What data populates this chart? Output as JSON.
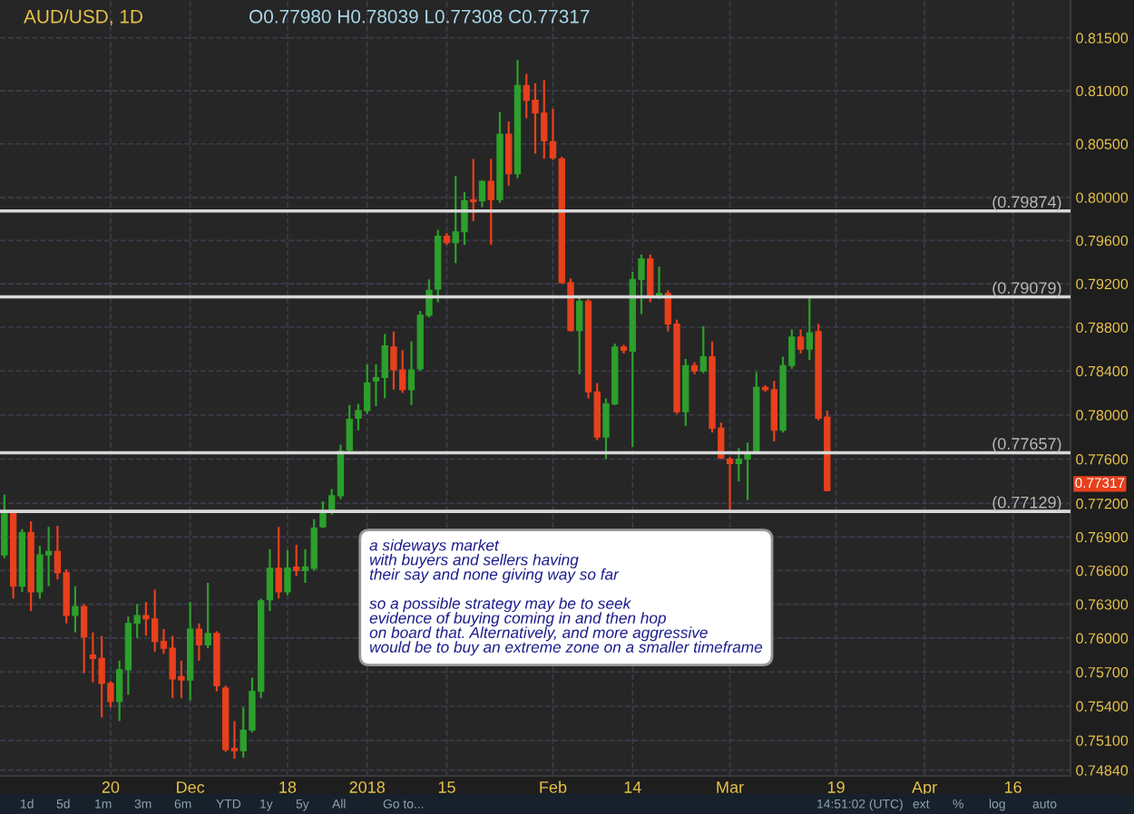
{
  "chart_data": {
    "type": "candlestick",
    "title": "AUD/USD, 1D",
    "subtitle": "O0.77980 H0.78039 L0.77308 C0.77317",
    "categories": [
      null,
      null,
      null,
      null,
      null,
      null,
      null,
      null,
      null,
      null,
      null,
      null,
      "20",
      null,
      null,
      null,
      null,
      null,
      null,
      null,
      null,
      "Dec",
      null,
      null,
      null,
      null,
      null,
      null,
      null,
      null,
      null,
      null,
      "18",
      null,
      null,
      null,
      null,
      null,
      null,
      null,
      null,
      "2018",
      null,
      null,
      null,
      null,
      null,
      null,
      null,
      null,
      "15",
      null,
      null,
      null,
      null,
      null,
      null,
      null,
      null,
      null,
      null,
      null,
      "Feb",
      null,
      null,
      null,
      null,
      null,
      null,
      null,
      null,
      "14",
      null,
      null,
      null,
      null,
      null,
      null,
      null,
      null,
      null,
      null,
      "Mar",
      null,
      null,
      null,
      null,
      null,
      null,
      null,
      null,
      null,
      null,
      null,
      "19",
      null,
      null,
      null,
      null,
      null,
      null,
      null,
      null,
      null,
      "Apr",
      null,
      null,
      null,
      null,
      null,
      null,
      null,
      null,
      null,
      "16",
      null,
      null,
      null,
      null,
      null,
      null
    ],
    "ohlc": [
      [
        0.7674,
        0.7728,
        0.7671,
        0.7711
      ],
      [
        0.7711,
        0.7713,
        0.7635,
        0.7646
      ],
      [
        0.7646,
        0.7697,
        0.7641,
        0.7694
      ],
      [
        0.7694,
        0.7704,
        0.7624,
        0.7641
      ],
      [
        0.7641,
        0.7682,
        0.7635,
        0.7674
      ],
      [
        0.7674,
        0.7699,
        0.7646,
        0.7677
      ],
      [
        0.7677,
        0.77,
        0.7652,
        0.7658
      ],
      [
        0.7658,
        0.7661,
        0.7613,
        0.762
      ],
      [
        0.762,
        0.7646,
        0.7605,
        0.7628
      ],
      [
        0.7628,
        0.763,
        0.7569,
        0.7601
      ],
      [
        0.7585,
        0.7605,
        0.7561,
        0.7582
      ],
      [
        0.7582,
        0.7602,
        0.753,
        0.756
      ],
      [
        0.756,
        0.7562,
        0.7539,
        0.7544
      ],
      [
        0.7544,
        0.758,
        0.7527,
        0.7572
      ],
      [
        0.7572,
        0.7619,
        0.755,
        0.7613
      ],
      [
        0.7613,
        0.763,
        0.76,
        0.762
      ],
      [
        0.762,
        0.7632,
        0.7602,
        0.7617
      ],
      [
        0.7617,
        0.7643,
        0.7588,
        0.7597
      ],
      [
        0.7597,
        0.7608,
        0.7586,
        0.7591
      ],
      [
        0.7591,
        0.7602,
        0.7547,
        0.7564
      ],
      [
        0.7566,
        0.758,
        0.7547,
        0.7563
      ],
      [
        0.7563,
        0.7632,
        0.7545,
        0.7608
      ],
      [
        0.7608,
        0.7613,
        0.758,
        0.7594
      ],
      [
        0.7594,
        0.7649,
        0.7591,
        0.7604
      ],
      [
        0.7604,
        0.7606,
        0.7553,
        0.7558
      ],
      [
        0.7556,
        0.7558,
        0.75,
        0.7502
      ],
      [
        0.7503,
        0.7527,
        0.7494,
        0.7501
      ],
      [
        0.7501,
        0.7539,
        0.7495,
        0.7519
      ],
      [
        0.7519,
        0.7565,
        0.7517,
        0.7553
      ],
      [
        0.7553,
        0.7635,
        0.7547,
        0.7633
      ],
      [
        0.7634,
        0.7679,
        0.7624,
        0.7662
      ],
      [
        0.7662,
        0.7699,
        0.7635,
        0.7641
      ],
      [
        0.7641,
        0.7678,
        0.7638,
        0.7662
      ],
      [
        0.7663,
        0.7683,
        0.7655,
        0.766
      ],
      [
        0.766,
        0.7679,
        0.7649,
        0.7663
      ],
      [
        0.7662,
        0.7706,
        0.766,
        0.7698
      ],
      [
        0.7699,
        0.7722,
        0.7698,
        0.7713
      ],
      [
        0.7714,
        0.7733,
        0.771,
        0.7727
      ],
      [
        0.7727,
        0.7773,
        0.7724,
        0.7767
      ],
      [
        0.7768,
        0.7809,
        0.7765,
        0.7796
      ],
      [
        0.7797,
        0.781,
        0.7786,
        0.7804
      ],
      [
        0.7804,
        0.7846,
        0.7801,
        0.7829
      ],
      [
        0.7831,
        0.7846,
        0.7808,
        0.7834
      ],
      [
        0.7834,
        0.7874,
        0.7815,
        0.7863
      ],
      [
        0.7862,
        0.7876,
        0.7823,
        0.7841
      ],
      [
        0.7841,
        0.7859,
        0.782,
        0.7823
      ],
      [
        0.7823,
        0.7867,
        0.7809,
        0.7841
      ],
      [
        0.7842,
        0.7895,
        0.784,
        0.7891
      ],
      [
        0.7891,
        0.7924,
        0.7889,
        0.7914
      ],
      [
        0.7915,
        0.797,
        0.7903,
        0.7964
      ],
      [
        0.7964,
        0.7967,
        0.7956,
        0.7958
      ],
      [
        0.7958,
        0.802,
        0.7939,
        0.7968
      ],
      [
        0.7968,
        0.8005,
        0.7956,
        0.7997
      ],
      [
        0.7998,
        0.8036,
        0.7978,
        0.7996
      ],
      [
        0.7997,
        0.8016,
        0.7991,
        0.8015
      ],
      [
        0.8015,
        0.8036,
        0.7956,
        0.7998
      ],
      [
        0.7998,
        0.808,
        0.7995,
        0.8059
      ],
      [
        0.8059,
        0.8071,
        0.8011,
        0.8022
      ],
      [
        0.8022,
        0.8129,
        0.8018,
        0.8105
      ],
      [
        0.8105,
        0.8116,
        0.8074,
        0.8091
      ],
      [
        0.8091,
        0.8107,
        0.8041,
        0.8079
      ],
      [
        0.8079,
        0.811,
        0.8036,
        0.8053
      ],
      [
        0.8052,
        0.8083,
        0.8035,
        0.8037
      ],
      [
        0.8036,
        0.8038,
        0.792,
        0.7921
      ],
      [
        0.7921,
        0.7925,
        0.7876,
        0.7877
      ],
      [
        0.7877,
        0.7909,
        0.7837,
        0.7904
      ],
      [
        0.7904,
        0.7906,
        0.7815,
        0.7821
      ],
      [
        0.7821,
        0.7829,
        0.7777,
        0.778
      ],
      [
        0.778,
        0.7815,
        0.776,
        0.781
      ],
      [
        0.781,
        0.7865,
        0.7809,
        0.7862
      ],
      [
        0.7862,
        0.7864,
        0.7856,
        0.7859
      ],
      [
        0.7858,
        0.7931,
        0.7771,
        0.7924
      ],
      [
        0.7924,
        0.7947,
        0.7892,
        0.7943
      ],
      [
        0.7943,
        0.7947,
        0.7903,
        0.7909
      ],
      [
        0.7909,
        0.7936,
        0.7906,
        0.7911
      ],
      [
        0.7911,
        0.7914,
        0.7876,
        0.7883
      ],
      [
        0.7883,
        0.7887,
        0.7801,
        0.7803
      ],
      [
        0.7803,
        0.7851,
        0.779,
        0.7845
      ],
      [
        0.7845,
        0.7848,
        0.7837,
        0.784
      ],
      [
        0.784,
        0.7881,
        0.7838,
        0.7853
      ],
      [
        0.7853,
        0.7867,
        0.7784,
        0.7788
      ],
      [
        0.7788,
        0.7793,
        0.776,
        0.7761
      ],
      [
        0.776,
        0.7762,
        0.77129,
        0.7756
      ],
      [
        0.7756,
        0.777,
        0.774,
        0.776
      ],
      [
        0.776,
        0.7775,
        0.7723,
        0.7765
      ],
      [
        0.7765,
        0.7839,
        0.7765,
        0.7825
      ],
      [
        0.7825,
        0.7827,
        0.7821,
        0.7823
      ],
      [
        0.7823,
        0.7831,
        0.7776,
        0.7786
      ],
      [
        0.7786,
        0.7853,
        0.7784,
        0.7845
      ],
      [
        0.7845,
        0.7878,
        0.7842,
        0.7871
      ],
      [
        0.7871,
        0.7878,
        0.7856,
        0.786
      ],
      [
        0.786,
        0.79079,
        0.785,
        0.7875
      ],
      [
        0.7876,
        0.7883,
        0.7795,
        0.7797
      ],
      [
        0.7798,
        0.78039,
        0.77308,
        0.77317
      ],
      null,
      null,
      null,
      null,
      null,
      null,
      null,
      null,
      null,
      null,
      null,
      null,
      null,
      null,
      null,
      null,
      null,
      null,
      null,
      null,
      null,
      null,
      null,
      null,
      null,
      null,
      null
    ],
    "colors": [
      "#2ca02c",
      "#e8401c",
      "#2ca02c",
      "#e8401c",
      "#2ca02c",
      "#2ca02c",
      "#e8401c",
      "#e8401c",
      "#2ca02c",
      "#e8401c",
      "#e8401c",
      "#e8401c",
      "#e8401c",
      "#2ca02c",
      "#2ca02c",
      "#2ca02c",
      "#e8401c",
      "#e8401c",
      "#e8401c",
      "#e8401c",
      "#e8401c",
      "#2ca02c",
      "#e8401c",
      "#2ca02c",
      "#e8401c",
      "#e8401c",
      "#e8401c",
      "#2ca02c",
      "#2ca02c",
      "#2ca02c",
      "#2ca02c",
      "#e8401c",
      "#2ca02c",
      "#e8401c",
      "#2ca02c",
      "#2ca02c",
      "#2ca02c",
      "#2ca02c",
      "#2ca02c",
      "#2ca02c",
      "#2ca02c",
      "#2ca02c",
      "#2ca02c",
      "#2ca02c",
      "#e8401c",
      "#e8401c",
      "#2ca02c",
      "#2ca02c",
      "#2ca02c",
      "#2ca02c",
      "#e8401c",
      "#2ca02c",
      "#2ca02c",
      "#e8401c",
      "#2ca02c",
      "#e8401c",
      "#2ca02c",
      "#e8401c",
      "#2ca02c",
      "#e8401c",
      "#e8401c",
      "#e8401c",
      "#e8401c",
      "#e8401c",
      "#e8401c",
      "#2ca02c",
      "#e8401c",
      "#e8401c",
      "#2ca02c",
      "#2ca02c",
      "#e8401c",
      "#2ca02c",
      "#2ca02c",
      "#e8401c",
      "#2ca02c",
      "#e8401c",
      "#e8401c",
      "#2ca02c",
      "#e8401c",
      "#2ca02c",
      "#e8401c",
      "#e8401c",
      "#e8401c",
      "#2ca02c",
      "#2ca02c",
      "#2ca02c",
      "#e8401c",
      "#e8401c",
      "#2ca02c",
      "#2ca02c",
      "#e8401c",
      "#2ca02c",
      "#e8401c",
      "#e8401c",
      null,
      null,
      null,
      null,
      null,
      null,
      null,
      null,
      null,
      null,
      null,
      null,
      null,
      null,
      null,
      null,
      null,
      null,
      null,
      null,
      null,
      null,
      null,
      null,
      null,
      null,
      null
    ],
    "log": true,
    "grid": true,
    "ylim": [
      0.7479,
      0.8186
    ],
    "yticks": [
      {
        "value": 0.815,
        "label": "0.81500"
      },
      {
        "value": 0.81,
        "label": "0.81000"
      },
      {
        "value": 0.805,
        "label": "0.80500"
      },
      {
        "value": 0.8,
        "label": "0.80000"
      },
      {
        "value": 0.796,
        "label": "0.79600"
      },
      {
        "value": 0.792,
        "label": "0.79200"
      },
      {
        "value": 0.788,
        "label": "0.78800"
      },
      {
        "value": 0.784,
        "label": "0.78400"
      },
      {
        "value": 0.78,
        "label": "0.78000"
      },
      {
        "value": 0.776,
        "label": "0.77600"
      },
      {
        "value": 0.772,
        "label": "0.77200"
      },
      {
        "value": 0.769,
        "label": "0.76900"
      },
      {
        "value": 0.766,
        "label": "0.76600"
      },
      {
        "value": 0.763,
        "label": "0.76300"
      },
      {
        "value": 0.76,
        "label": "0.76000"
      },
      {
        "value": 0.757,
        "label": "0.75700"
      },
      {
        "value": 0.754,
        "label": "0.75400"
      },
      {
        "value": 0.751,
        "label": "0.75100"
      },
      {
        "value": 0.7484,
        "label": "0.74840"
      }
    ],
    "ref_lines": [
      {
        "axis": "y",
        "value": 0.79874,
        "label": "(0.79874)",
        "color": "#d8d8d8"
      },
      {
        "axis": "y",
        "value": 0.79079,
        "label": "(0.79079)",
        "color": "#d8d8d8"
      },
      {
        "axis": "y",
        "value": 0.77657,
        "label": "(0.77657)",
        "color": "#d8d8d8"
      },
      {
        "axis": "y",
        "value": 0.77129,
        "label": "(0.77129)",
        "color": "#d8d8d8"
      }
    ],
    "annotations": [
      "a sideways market\nwith buyers and sellers having\ntheir say and none giving way so far\n\nso a possible strategy may be to seek\nevidence of buying coming in and then hop\non board that. Alternatively, and more aggressive\nwould be to buy an extreme zone on a smaller timeframe",
      "0.77317",
      "1d",
      "5d",
      "1m",
      "3m",
      "6m",
      "YTD",
      "1y",
      "5y",
      "All",
      "Go to...",
      "14:51:02 (UTC)",
      "ext",
      "%",
      "log",
      "auto"
    ]
  }
}
